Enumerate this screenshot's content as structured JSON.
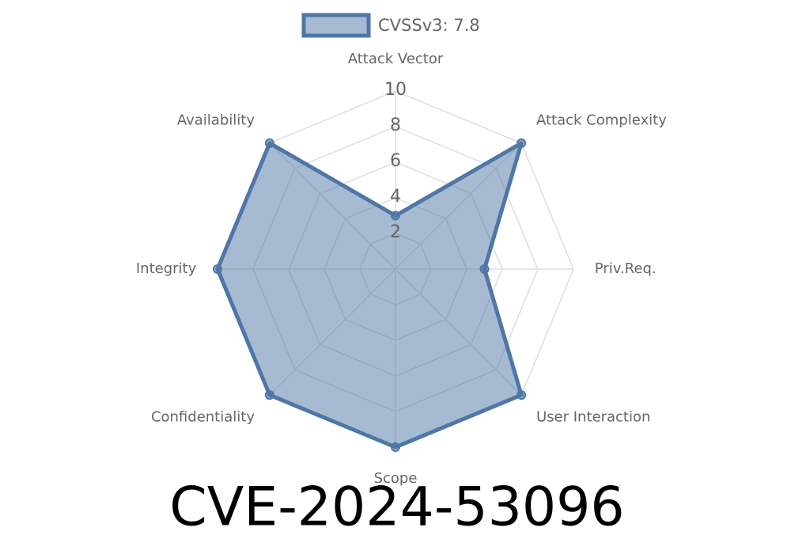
{
  "chart_data": {
    "type": "radar",
    "title": "CVE-2024-53096",
    "categories": [
      "Attack Vector",
      "Attack Complexity",
      "Priv.Req.",
      "User Interaction",
      "Scope",
      "Confidentiality",
      "Integrity",
      "Availability"
    ],
    "series": [
      {
        "name": "CVSSv3: 7.8",
        "color": "#4e76a6",
        "values": [
          3,
          10,
          5,
          10,
          10,
          10,
          10,
          10
        ]
      }
    ],
    "rlim": [
      0,
      10
    ],
    "rticks": [
      2,
      4,
      6,
      8,
      10
    ],
    "grid": true,
    "legend": "top"
  }
}
